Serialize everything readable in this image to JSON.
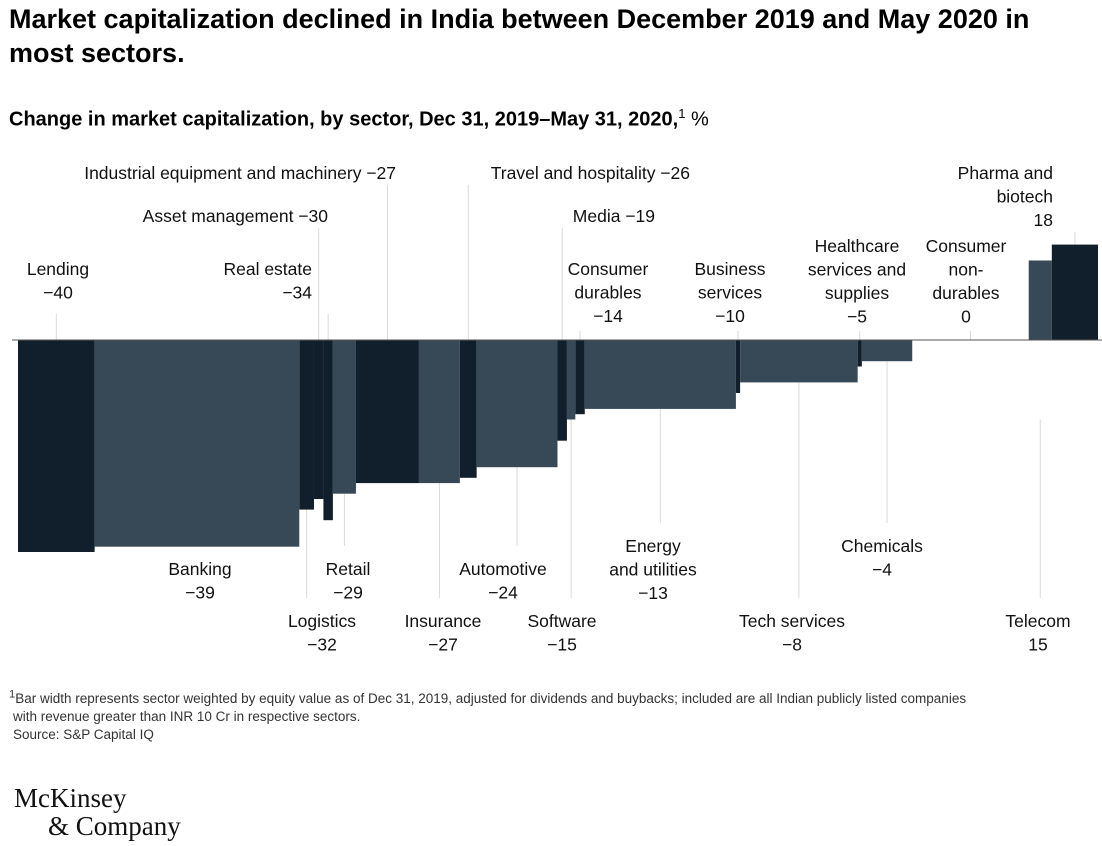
{
  "header": {
    "title": "Market capitalization declined in India between December 2019 and May 2020 in most sectors.",
    "subtitle": "Change in market capitalization, by sector, Dec 31, 2019–May 31, 2020,",
    "subtitle_sup": "1",
    "subtitle_unit": " %"
  },
  "chart_data": {
    "type": "bar",
    "title": "Change in market capitalization, by sector, Dec 31, 2019–May 31, 2020",
    "ylabel": "%",
    "ylim": [
      -40,
      18
    ],
    "grid": false,
    "colors": {
      "dark": "#111e2b",
      "mid": "#374956",
      "leader": "#d9d9d9",
      "axis": "#555555"
    },
    "note": "Bar width represents sector weighted by equity value",
    "series": [
      {
        "name": "Lending",
        "value": -40,
        "weight": 7.3,
        "label_lines": [
          "Lending",
          "−40"
        ]
      },
      {
        "name": "Banking",
        "value": -39,
        "weight": 19.5,
        "label_lines": [
          "Banking",
          "−39"
        ]
      },
      {
        "name": "Logistics",
        "value": -32,
        "weight": 1.4,
        "label_lines": [
          "Logistics",
          "−32"
        ]
      },
      {
        "name": "Asset management",
        "value": -30,
        "weight": 0.9,
        "label_lines": [
          "Asset management −30"
        ]
      },
      {
        "name": "Real estate",
        "value": -34,
        "weight": 0.9,
        "label_lines": [
          "Real estate",
          "−34"
        ]
      },
      {
        "name": "Retail",
        "value": -29,
        "weight": 2.2,
        "label_lines": [
          "Retail",
          "−29"
        ]
      },
      {
        "name": "Industrial equipment and machinery",
        "value": -27,
        "weight": 6.0,
        "label_lines": [
          "Industrial equipment and machinery −27"
        ]
      },
      {
        "name": "Insurance",
        "value": -27,
        "weight": 3.9,
        "label_lines": [
          "Insurance",
          "−27"
        ]
      },
      {
        "name": "Travel and hospitality",
        "value": -26,
        "weight": 1.6,
        "label_lines": [
          "Travel and hospitality −26"
        ]
      },
      {
        "name": "Automotive",
        "value": -24,
        "weight": 7.7,
        "label_lines": [
          "Automotive",
          "−24"
        ]
      },
      {
        "name": "Media",
        "value": -19,
        "weight": 0.9,
        "label_lines": [
          "Media −19"
        ]
      },
      {
        "name": "Software",
        "value": -15,
        "weight": 0.8,
        "label_lines": [
          "Software",
          "−15"
        ]
      },
      {
        "name": "Consumer durables",
        "value": -14,
        "weight": 0.9,
        "label_lines": [
          "Consumer",
          "durables",
          "−14"
        ]
      },
      {
        "name": "Energy and utilities",
        "value": -13,
        "weight": 14.4,
        "label_lines": [
          "Energy",
          "and utilities",
          "−13"
        ]
      },
      {
        "name": "Business services",
        "value": -10,
        "weight": 0.4,
        "label_lines": [
          "Business",
          "services",
          "−10"
        ]
      },
      {
        "name": "Tech services",
        "value": -8,
        "weight": 11.2,
        "label_lines": [
          "Tech services",
          "−8"
        ]
      },
      {
        "name": "Healthcare services and supplies",
        "value": -5,
        "weight": 0.4,
        "label_lines": [
          "Healthcare",
          "services and",
          "supplies",
          "−5"
        ]
      },
      {
        "name": "Chemicals",
        "value": -4,
        "weight": 4.8,
        "label_lines": [
          "Chemicals",
          "−4"
        ]
      },
      {
        "name": "Consumer non-durables",
        "value": 0,
        "weight": 11.1,
        "label_lines": [
          "Consumer",
          "non-",
          "durables",
          "0"
        ]
      },
      {
        "name": "Telecom",
        "value": 15,
        "weight": 2.2,
        "label_lines": [
          "Telecom",
          "15"
        ]
      },
      {
        "name": "Pharma and biotech",
        "value": 18,
        "weight": 4.4,
        "label_lines": [
          "Pharma and",
          "biotech",
          "18"
        ]
      }
    ]
  },
  "footnote": {
    "sup": "1",
    "line1": "Bar width represents sector weighted by equity value as of Dec 31, 2019, adjusted for dividends and buybacks; included are all Indian publicly listed companies",
    "line2": "with revenue greater than INR 10 Cr in respective sectors.",
    "source": "Source: S&P Capital IQ"
  },
  "logo": {
    "line1": "McKinsey",
    "line2": "& Company"
  }
}
